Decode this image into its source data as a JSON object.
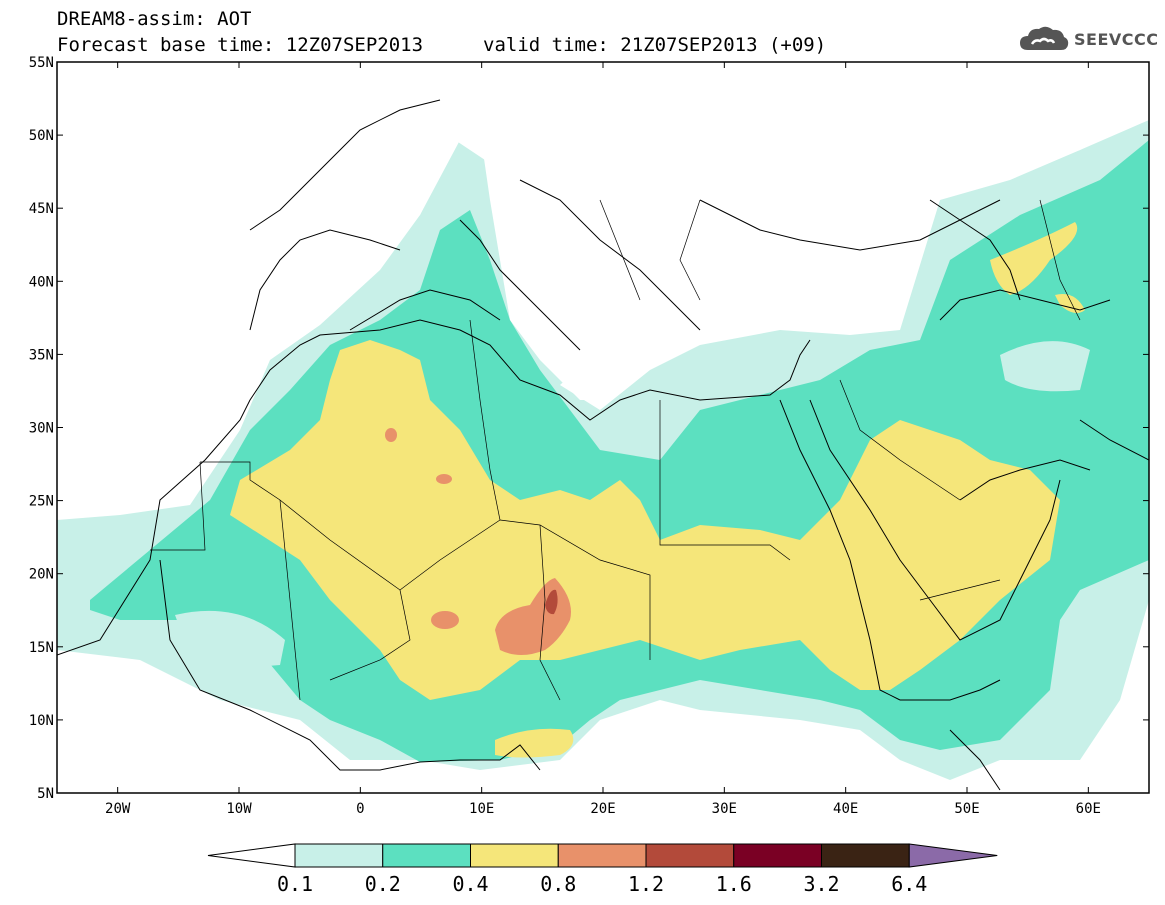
{
  "header": {
    "title_line1": "DREAM8-assim: AOT",
    "title_line2": "Forecast base time: 12Z07SEP2013",
    "valid_time": "valid time: 21Z07SEP2013 (+09)",
    "logo_text": "SEEVCCC",
    "logo_icon": "cloud-icon"
  },
  "map": {
    "lon_range": [
      -25,
      65
    ],
    "lat_range": [
      5,
      55
    ],
    "y_ticks": [
      "5N",
      "10N",
      "15N",
      "20N",
      "25N",
      "30N",
      "35N",
      "40N",
      "45N",
      "50N",
      "55N"
    ],
    "x_ticks": [
      "20W",
      "10W",
      "0",
      "10E",
      "20E",
      "30E",
      "40E",
      "50E",
      "60E"
    ]
  },
  "colorbar": {
    "labels": [
      "0.1",
      "0.2",
      "0.4",
      "0.8",
      "1.2",
      "1.6",
      "3.2",
      "6.4"
    ],
    "colors": [
      "#ffffff",
      "#c8f0e8",
      "#5ce0c0",
      "#f5e67a",
      "#e8916a",
      "#b34a3a",
      "#7a0024",
      "#3a2314",
      "#8b6aa8"
    ]
  },
  "colors": {
    "aot_0_1": "#c8f0e8",
    "aot_0_2": "#5ce0c0",
    "aot_0_4": "#f5e67a",
    "aot_0_8": "#e8916a",
    "aot_1_2": "#b34a3a"
  }
}
